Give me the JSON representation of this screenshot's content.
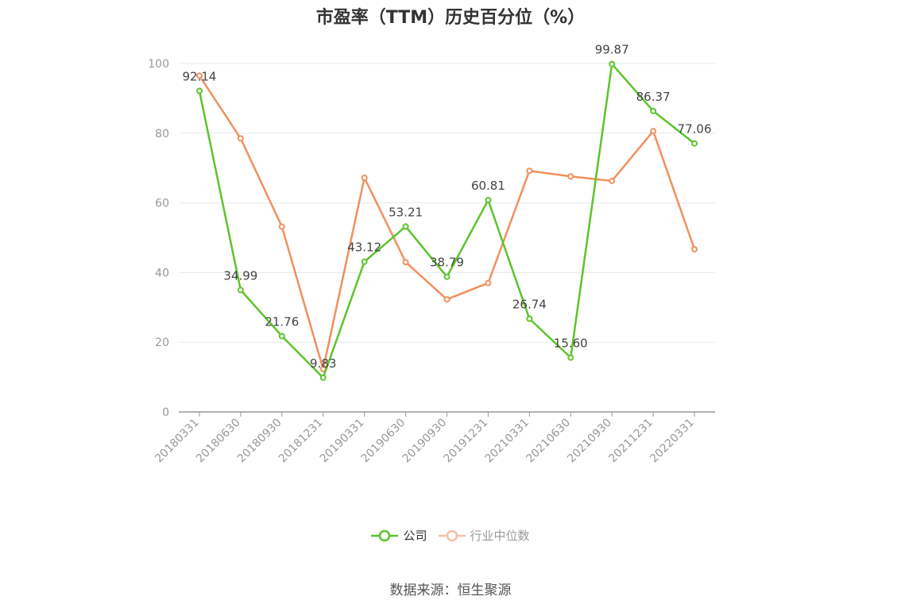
{
  "title": "市盈率（TTM）历史百分位（%）",
  "source": "数据来源：恒生聚源",
  "chart_data": {
    "type": "line",
    "title": "市盈率（TTM）历史百分位（%）",
    "x": [
      "20180331",
      "20180630",
      "20180930",
      "20181231",
      "20190331",
      "20190630",
      "20190930",
      "20191231",
      "20210331",
      "20210630",
      "20210930",
      "20211231",
      "20220331"
    ],
    "ylim": [
      0,
      100
    ],
    "yticks": [
      0,
      20,
      40,
      60,
      80,
      100
    ],
    "grid": true,
    "legend_position": "bottom",
    "series": [
      {
        "name": "公司",
        "color": "#5cc42b",
        "labeled": true,
        "values": [
          92.14,
          34.99,
          21.76,
          9.83,
          43.12,
          53.21,
          38.79,
          60.81,
          26.74,
          15.6,
          99.87,
          86.37,
          77.06
        ],
        "labels": [
          "92.14",
          "34.99",
          "21.76",
          "9.83",
          "43.12",
          "53.21",
          "38.79",
          "60.81",
          "26.74",
          "15.60",
          "99.87",
          "86.37",
          "77.06"
        ]
      },
      {
        "name": "行业中位数",
        "color": "#f0905e",
        "labeled": false,
        "values": [
          96.5,
          78.5,
          53.2,
          12.3,
          67.2,
          43.0,
          32.3,
          37.0,
          69.2,
          67.6,
          66.3,
          80.6,
          46.7
        ]
      }
    ]
  },
  "legend": {
    "company_label": "公司",
    "industry_label": "行业中位数"
  }
}
